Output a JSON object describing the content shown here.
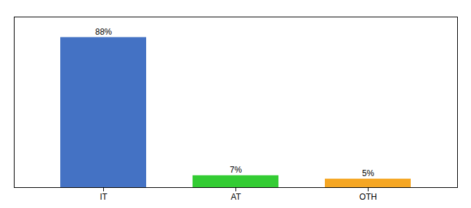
{
  "chart_data": {
    "type": "bar",
    "categories": [
      "IT",
      "AT",
      "OTH"
    ],
    "values": [
      88,
      7,
      5
    ],
    "value_labels": [
      "88%",
      "7%",
      "5%"
    ],
    "colors": [
      "#4472c4",
      "#33cc33",
      "#f5a623"
    ],
    "ylim": [
      0,
      100
    ],
    "grid": false,
    "data_labels": true,
    "tick_labels": "x"
  }
}
